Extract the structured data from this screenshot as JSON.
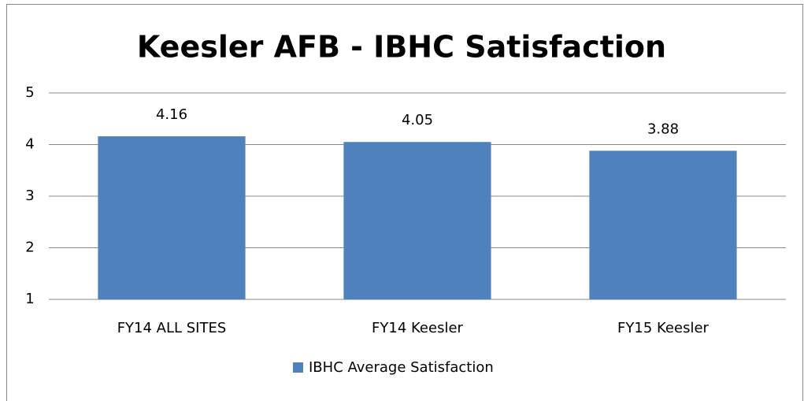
{
  "chart_data": {
    "type": "bar",
    "title": "Keesler AFB - IBHC Satisfaction",
    "categories": [
      "FY14 ALL SITES",
      "FY14 Keesler",
      "FY15 Keesler"
    ],
    "series": [
      {
        "name": "IBHC Average Satisfaction",
        "color": "#4f81bd",
        "values": [
          4.16,
          4.05,
          3.88
        ]
      }
    ],
    "ylim": [
      1,
      5
    ],
    "yticks": [
      1,
      2,
      3,
      4,
      5
    ],
    "grid": true,
    "legend": "bottom"
  }
}
